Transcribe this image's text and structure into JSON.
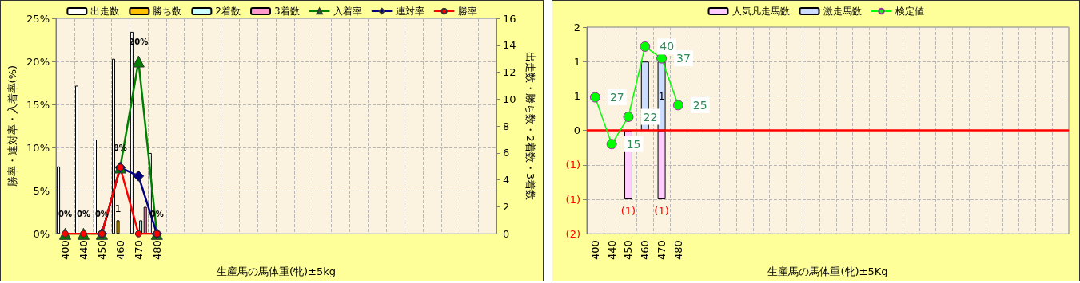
{
  "chart_data": [
    {
      "type": "bar",
      "xlabel": "生産馬の馬体重(牝)±5kg",
      "ylabel": "勝率・連対率・入着率(%)",
      "y2label": "出走数・勝ち数・2着数・3着数",
      "categories": [
        "400",
        "440",
        "450",
        "460",
        "470",
        "480",
        null,
        null,
        null,
        null,
        null,
        null,
        null,
        null,
        null,
        null,
        null,
        null,
        null,
        null,
        null,
        null,
        null,
        null
      ],
      "series": [
        {
          "name": "出走数",
          "axis": "y2",
          "color": "#ffffff",
          "values": [
            5,
            11,
            7,
            13,
            15,
            6,
            null,
            null,
            null,
            null,
            null,
            null,
            null,
            null,
            null,
            null,
            null,
            null,
            null,
            null,
            null,
            null,
            null,
            null
          ]
        },
        {
          "name": "勝ち数",
          "axis": "y2",
          "color": "#ffc000",
          "values": [
            null,
            null,
            null,
            1,
            null,
            null,
            null,
            null,
            null,
            null,
            null,
            null,
            null,
            null,
            null,
            null,
            null,
            null,
            null,
            null,
            null,
            null,
            null,
            null
          ],
          "value_labels": [
            null,
            null,
            null,
            "1",
            null,
            null,
            null,
            null,
            null,
            null,
            null,
            null,
            null,
            null,
            null,
            null,
            null,
            null,
            null,
            null,
            null,
            null,
            null,
            null
          ]
        },
        {
          "name": "2着数",
          "axis": "y2",
          "color": "#ccffff",
          "values": [
            null,
            null,
            null,
            null,
            1,
            null,
            null,
            null,
            null,
            null,
            null,
            null,
            null,
            null,
            null,
            null,
            null,
            null,
            null,
            null,
            null,
            null,
            null,
            null
          ]
        },
        {
          "name": "3着数",
          "axis": "y2",
          "color": "#ff99cc",
          "values": [
            null,
            null,
            null,
            null,
            2,
            null,
            null,
            null,
            null,
            null,
            null,
            null,
            null,
            null,
            null,
            null,
            null,
            null,
            null,
            null,
            null,
            null,
            null,
            null
          ]
        },
        {
          "name": "入着率",
          "type": "line",
          "axis": "y",
          "color": "#008000",
          "marker": "triangle",
          "values": [
            0,
            0,
            0,
            7.7,
            20,
            0,
            null,
            null,
            null,
            null,
            null,
            null,
            null,
            null,
            null,
            null,
            null,
            null,
            null,
            null,
            null,
            null,
            null,
            null
          ],
          "value_labels": [
            "0%",
            "0%",
            "0%",
            "8%",
            "20%",
            "0%",
            null,
            null,
            null,
            null,
            null,
            null,
            null,
            null,
            null,
            null,
            null,
            null,
            null,
            null,
            null,
            null,
            null,
            null
          ]
        },
        {
          "name": "連対率",
          "type": "line",
          "axis": "y",
          "color": "#000080",
          "marker": "diamond",
          "values": [
            null,
            null,
            0,
            7.7,
            6.7,
            0,
            null,
            null,
            null,
            null,
            null,
            null,
            null,
            null,
            null,
            null,
            null,
            null,
            null,
            null,
            null,
            null,
            null,
            null
          ]
        },
        {
          "name": "勝率",
          "type": "line",
          "axis": "y",
          "color": "#ff0000",
          "marker": "circle",
          "values": [
            0,
            0,
            0,
            7.7,
            0,
            0,
            null,
            null,
            null,
            null,
            null,
            null,
            null,
            null,
            null,
            null,
            null,
            null,
            null,
            null,
            null,
            null,
            null,
            null
          ]
        }
      ],
      "ylim": [
        0,
        25
      ],
      "yticks": [
        {
          "value": 0,
          "label": "0%"
        },
        {
          "value": 5,
          "label": "5%"
        },
        {
          "value": 10,
          "label": "10%"
        },
        {
          "value": 15,
          "label": "15%"
        },
        {
          "value": 20,
          "label": "20%"
        },
        {
          "value": 25,
          "label": "25%"
        }
      ],
      "y2lim": [
        0,
        16
      ],
      "y2ticks": [
        0,
        2,
        4,
        6,
        8,
        10,
        12,
        14,
        16
      ],
      "grid": true,
      "legend": "top",
      "line_style": "solid"
    },
    {
      "type": "bar",
      "xlabel": "生産馬の馬体重(牝)±5Kg",
      "stacked": true,
      "categories": [
        "400",
        "440",
        "450",
        "460",
        "470",
        "480",
        null,
        null,
        null,
        null,
        null,
        null,
        null,
        null,
        null,
        null,
        null,
        null,
        null,
        null,
        null,
        null,
        null,
        null,
        null,
        null,
        null,
        null,
        null
      ],
      "series": [
        {
          "name": "人気凡走馬数",
          "axis": "y",
          "color": "#ffccff",
          "values": [
            null,
            null,
            -1,
            null,
            -1,
            null,
            null,
            null,
            null,
            null,
            null,
            null,
            null,
            null,
            null,
            null,
            null,
            null,
            null,
            null,
            null,
            null,
            null,
            null,
            null,
            null,
            null,
            null,
            null
          ],
          "value_labels": [
            null,
            null,
            "(1)",
            null,
            "(1)",
            null,
            null,
            null,
            null,
            null,
            null,
            null,
            null,
            null,
            null,
            null,
            null,
            null,
            null,
            null,
            null,
            null,
            null,
            null,
            null,
            null,
            null,
            null,
            null
          ]
        },
        {
          "name": "激走馬数",
          "axis": "y",
          "color": "#ccddff",
          "values": [
            null,
            null,
            null,
            1,
            1,
            null,
            null,
            null,
            null,
            null,
            null,
            null,
            null,
            null,
            null,
            null,
            null,
            null,
            null,
            null,
            null,
            null,
            null,
            null,
            null,
            null,
            null,
            null,
            null
          ],
          "value_labels": [
            null,
            null,
            null,
            null,
            "1",
            null,
            null,
            null,
            null,
            null,
            null,
            null,
            null,
            null,
            null,
            null,
            null,
            null,
            null,
            null,
            null,
            null,
            null,
            null,
            null,
            null,
            null,
            null,
            null
          ]
        },
        {
          "name": "検定値",
          "type": "line",
          "axis": "y2",
          "color": "#00ff00",
          "marker": "circle",
          "values": [
            27,
            15,
            22,
            40,
            37,
            25,
            null,
            null,
            null,
            null,
            null,
            null,
            null,
            null,
            null,
            null,
            null,
            null,
            null,
            null,
            null,
            null,
            null,
            null,
            null,
            null,
            null,
            null,
            null
          ],
          "value_labels": [
            "27",
            "15",
            "22",
            "40",
            "37",
            "25",
            null,
            null,
            null,
            null,
            null,
            null,
            null,
            null,
            null,
            null,
            null,
            null,
            null,
            null,
            null,
            null,
            null,
            null,
            null,
            null,
            null,
            null,
            null
          ]
        }
      ],
      "ylim": [
        -1.5,
        1.5
      ],
      "yticks": [
        {
          "value": 1.5,
          "label": "2"
        },
        {
          "value": 1,
          "label": "1"
        },
        {
          "value": 0.5,
          "label": "1"
        },
        {
          "value": 0,
          "label": "0"
        },
        {
          "value": -0.5,
          "label": "(1)"
        },
        {
          "value": -1,
          "label": "(1)"
        },
        {
          "value": -1.5,
          "label": "(2)"
        }
      ],
      "y2lim": [
        -8,
        45
      ],
      "tick_labels": "xy",
      "grid": true,
      "legend": "top",
      "line_style": "solid",
      "ref_lines": [
        {
          "axis": "y",
          "value": 0,
          "color": "#ff0000"
        }
      ]
    }
  ]
}
